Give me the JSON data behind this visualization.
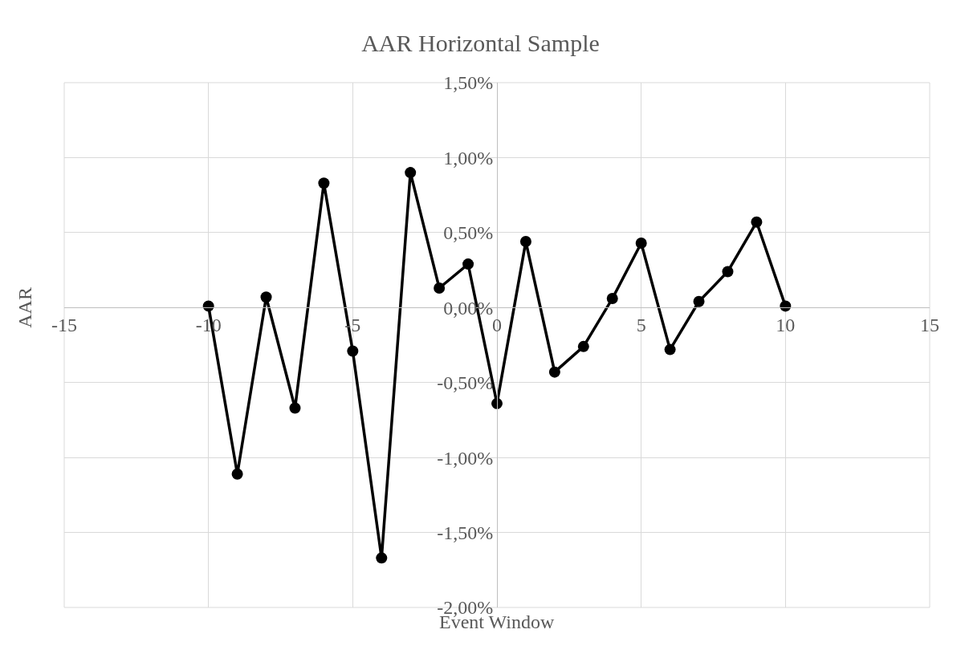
{
  "chart_data": {
    "type": "line",
    "title": "AAR Horizontal Sample",
    "xlabel": "Event Window",
    "ylabel": "AAR",
    "x": [
      -10,
      -9,
      -8,
      -7,
      -6,
      -5,
      -4,
      -3,
      -2,
      -1,
      0,
      1,
      2,
      3,
      4,
      5,
      6,
      7,
      8,
      9,
      10
    ],
    "series": [
      {
        "color": "#000000",
        "values": [
          0.01,
          -1.11,
          0.07,
          -0.67,
          0.83,
          -0.29,
          -1.67,
          0.9,
          0.13,
          0.29,
          -0.64,
          0.44,
          -0.43,
          -0.26,
          0.06,
          0.43,
          -0.28,
          0.04,
          0.24,
          0.57,
          0.01
        ]
      }
    ],
    "xlim": [
      -15,
      15
    ],
    "xticks": [
      -15,
      -10,
      -5,
      0,
      5,
      10,
      15
    ],
    "ylim": [
      -2,
      1.5
    ],
    "yticks": [
      {
        "value": -2,
        "label": "-2,00%"
      },
      {
        "value": -1.5,
        "label": "-1,50%"
      },
      {
        "value": -1,
        "label": "-1,00%"
      },
      {
        "value": -0.5,
        "label": "-0,50%"
      },
      {
        "value": 0,
        "label": "0,00%"
      },
      {
        "value": 0.5,
        "label": "0,50%"
      },
      {
        "value": 1,
        "label": "1,00%"
      },
      {
        "value": 1.5,
        "label": "1,50%"
      }
    ],
    "grid": true,
    "marker": "circle",
    "line_style": "solid"
  }
}
